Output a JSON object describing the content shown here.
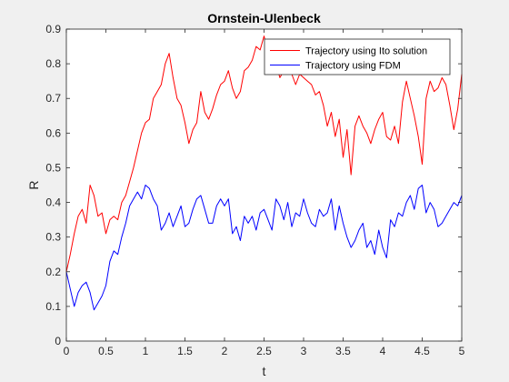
{
  "figure": {
    "background": "#f0f0f0"
  },
  "chart_data": {
    "type": "line",
    "title": "Ornstein-Ulenbeck",
    "xlabel": "t",
    "ylabel": "R",
    "xlim": [
      0,
      5
    ],
    "ylim": [
      0,
      0.9
    ],
    "xticks": [
      "0",
      "0.5",
      "1",
      "1.5",
      "2",
      "2.5",
      "3",
      "3.5",
      "4",
      "4.5",
      "5"
    ],
    "yticks": [
      "0",
      "0.1",
      "0.2",
      "0.3",
      "0.4",
      "0.5",
      "0.6",
      "0.7",
      "0.8",
      "0.9"
    ],
    "grid": false,
    "legend_position": "top-right",
    "x": [
      0,
      0.05,
      0.1,
      0.15,
      0.2,
      0.25,
      0.3,
      0.35,
      0.4,
      0.45,
      0.5,
      0.55,
      0.6,
      0.65,
      0.7,
      0.75,
      0.8,
      0.85,
      0.9,
      0.95,
      1.0,
      1.05,
      1.1,
      1.15,
      1.2,
      1.25,
      1.3,
      1.35,
      1.4,
      1.45,
      1.5,
      1.55,
      1.6,
      1.65,
      1.7,
      1.75,
      1.8,
      1.85,
      1.9,
      1.95,
      2.0,
      2.05,
      2.1,
      2.15,
      2.2,
      2.25,
      2.3,
      2.35,
      2.4,
      2.45,
      2.5,
      2.55,
      2.6,
      2.65,
      2.7,
      2.75,
      2.8,
      2.85,
      2.9,
      2.95,
      3.0,
      3.05,
      3.1,
      3.15,
      3.2,
      3.25,
      3.3,
      3.35,
      3.4,
      3.45,
      3.5,
      3.55,
      3.6,
      3.65,
      3.7,
      3.75,
      3.8,
      3.85,
      3.9,
      3.95,
      4.0,
      4.05,
      4.1,
      4.15,
      4.2,
      4.25,
      4.3,
      4.35,
      4.4,
      4.45,
      4.5,
      4.55,
      4.6,
      4.65,
      4.7,
      4.75,
      4.8,
      4.85,
      4.9,
      4.95,
      5.0
    ],
    "series": [
      {
        "name": "Trajectory using Ito solution",
        "color": "#ff0000",
        "values": [
          0.2,
          0.25,
          0.31,
          0.36,
          0.38,
          0.34,
          0.45,
          0.42,
          0.36,
          0.37,
          0.31,
          0.35,
          0.36,
          0.35,
          0.4,
          0.42,
          0.46,
          0.5,
          0.55,
          0.6,
          0.63,
          0.64,
          0.7,
          0.72,
          0.74,
          0.8,
          0.83,
          0.76,
          0.7,
          0.68,
          0.63,
          0.57,
          0.61,
          0.63,
          0.72,
          0.66,
          0.64,
          0.67,
          0.71,
          0.74,
          0.75,
          0.78,
          0.73,
          0.7,
          0.72,
          0.78,
          0.79,
          0.81,
          0.85,
          0.84,
          0.88,
          0.83,
          0.84,
          0.8,
          0.76,
          0.78,
          0.79,
          0.77,
          0.74,
          0.77,
          0.76,
          0.75,
          0.74,
          0.71,
          0.72,
          0.68,
          0.62,
          0.66,
          0.59,
          0.64,
          0.53,
          0.61,
          0.48,
          0.62,
          0.65,
          0.62,
          0.6,
          0.57,
          0.61,
          0.64,
          0.66,
          0.59,
          0.58,
          0.62,
          0.57,
          0.69,
          0.75,
          0.7,
          0.65,
          0.59,
          0.51,
          0.7,
          0.75,
          0.72,
          0.73,
          0.76,
          0.74,
          0.68,
          0.61,
          0.67,
          0.77
        ]
      },
      {
        "name": "Trajectory using FDM",
        "color": "#0000ff",
        "values": [
          0.2,
          0.15,
          0.1,
          0.14,
          0.16,
          0.17,
          0.14,
          0.09,
          0.11,
          0.13,
          0.16,
          0.23,
          0.26,
          0.25,
          0.3,
          0.34,
          0.39,
          0.41,
          0.43,
          0.41,
          0.45,
          0.44,
          0.41,
          0.39,
          0.32,
          0.34,
          0.37,
          0.33,
          0.36,
          0.39,
          0.33,
          0.34,
          0.38,
          0.41,
          0.42,
          0.38,
          0.34,
          0.34,
          0.39,
          0.41,
          0.39,
          0.41,
          0.31,
          0.33,
          0.29,
          0.36,
          0.34,
          0.36,
          0.32,
          0.37,
          0.38,
          0.35,
          0.32,
          0.41,
          0.39,
          0.35,
          0.4,
          0.33,
          0.37,
          0.36,
          0.41,
          0.37,
          0.34,
          0.33,
          0.38,
          0.36,
          0.37,
          0.41,
          0.32,
          0.39,
          0.34,
          0.3,
          0.27,
          0.29,
          0.32,
          0.34,
          0.27,
          0.29,
          0.25,
          0.32,
          0.27,
          0.24,
          0.35,
          0.33,
          0.37,
          0.36,
          0.4,
          0.42,
          0.38,
          0.44,
          0.45,
          0.37,
          0.4,
          0.38,
          0.33,
          0.34,
          0.36,
          0.38,
          0.4,
          0.39,
          0.42
        ]
      }
    ]
  }
}
